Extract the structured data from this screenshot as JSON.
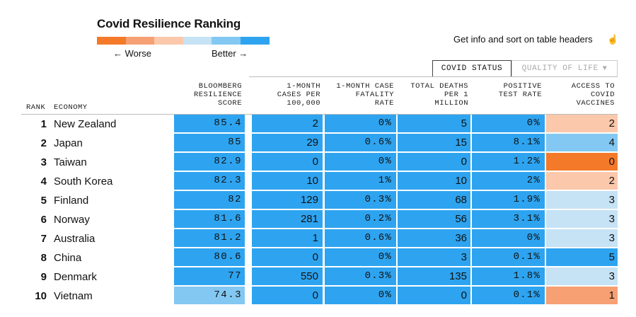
{
  "title": "Covid Resilience Ranking",
  "legend": {
    "worse": "← Worse",
    "better": "Better →",
    "colors": [
      "#f47a2a",
      "#f6a073",
      "#fbc8ab",
      "#c6e2f5",
      "#83c8f2",
      "#2ea4f0"
    ]
  },
  "info": "Get info and sort on table headers",
  "info_icon": "pointer-hand-icon",
  "tabs": {
    "covid": "COVID STATUS",
    "quality": "QUALITY OF LIFE"
  },
  "headers": {
    "rank": "RANK",
    "economy": "ECONOMY",
    "score": "BLOOMBERG\nRESILIENCE\nSCORE",
    "cases": "1-MONTH\nCASES PER\n100,000",
    "fatality": "1-MONTH CASE\nFATALITY\nRATE",
    "deaths": "TOTAL DEATHS\nPER 1\nMILLION",
    "positive": "POSITIVE\nTEST RATE",
    "vaccines": "ACCESS TO\nCOVID\nVACCINES"
  },
  "rows": [
    {
      "rank": "1",
      "economy": "New Zealand",
      "score": "85.4",
      "cases": "2",
      "fatality": "0%",
      "deaths": "5",
      "positive": "0%",
      "vaccines": "2"
    },
    {
      "rank": "2",
      "economy": "Japan",
      "score": "85",
      "cases": "29",
      "fatality": "0.6%",
      "deaths": "15",
      "positive": "8.1%",
      "vaccines": "4"
    },
    {
      "rank": "3",
      "economy": "Taiwan",
      "score": "82.9",
      "cases": "0",
      "fatality": "0%",
      "deaths": "0",
      "positive": "1.2%",
      "vaccines": "0"
    },
    {
      "rank": "4",
      "economy": "South Korea",
      "score": "82.3",
      "cases": "10",
      "fatality": "1%",
      "deaths": "10",
      "positive": "2%",
      "vaccines": "2"
    },
    {
      "rank": "5",
      "economy": "Finland",
      "score": "82",
      "cases": "129",
      "fatality": "0.3%",
      "deaths": "68",
      "positive": "1.9%",
      "vaccines": "3"
    },
    {
      "rank": "6",
      "economy": "Norway",
      "score": "81.6",
      "cases": "281",
      "fatality": "0.2%",
      "deaths": "56",
      "positive": "3.1%",
      "vaccines": "3"
    },
    {
      "rank": "7",
      "economy": "Australia",
      "score": "81.2",
      "cases": "1",
      "fatality": "0.6%",
      "deaths": "36",
      "positive": "0%",
      "vaccines": "3"
    },
    {
      "rank": "8",
      "economy": "China",
      "score": "80.6",
      "cases": "0",
      "fatality": "0%",
      "deaths": "3",
      "positive": "0.1%",
      "vaccines": "5"
    },
    {
      "rank": "9",
      "economy": "Denmark",
      "score": "77",
      "cases": "550",
      "fatality": "0.3%",
      "deaths": "135",
      "positive": "1.8%",
      "vaccines": "3"
    },
    {
      "rank": "10",
      "economy": "Vietnam",
      "score": "74.3",
      "cases": "0",
      "fatality": "0%",
      "deaths": "0",
      "positive": "0.1%",
      "vaccines": "1"
    }
  ],
  "cell_colors": [
    {
      "score": "#2ea4f0",
      "cases": "#2ea4f0",
      "fatality": "#2ea4f0",
      "deaths": "#2ea4f0",
      "positive": "#2ea4f0",
      "vaccines": "#fbc8ab"
    },
    {
      "score": "#2ea4f0",
      "cases": "#2ea4f0",
      "fatality": "#2ea4f0",
      "deaths": "#2ea4f0",
      "positive": "#2ea4f0",
      "vaccines": "#83c8f2"
    },
    {
      "score": "#2ea4f0",
      "cases": "#2ea4f0",
      "fatality": "#2ea4f0",
      "deaths": "#2ea4f0",
      "positive": "#2ea4f0",
      "vaccines": "#f47a2a"
    },
    {
      "score": "#2ea4f0",
      "cases": "#2ea4f0",
      "fatality": "#2ea4f0",
      "deaths": "#2ea4f0",
      "positive": "#2ea4f0",
      "vaccines": "#fbc8ab"
    },
    {
      "score": "#2ea4f0",
      "cases": "#2ea4f0",
      "fatality": "#2ea4f0",
      "deaths": "#2ea4f0",
      "positive": "#2ea4f0",
      "vaccines": "#c6e2f5"
    },
    {
      "score": "#2ea4f0",
      "cases": "#2ea4f0",
      "fatality": "#2ea4f0",
      "deaths": "#2ea4f0",
      "positive": "#2ea4f0",
      "vaccines": "#c6e2f5"
    },
    {
      "score": "#2ea4f0",
      "cases": "#2ea4f0",
      "fatality": "#2ea4f0",
      "deaths": "#2ea4f0",
      "positive": "#2ea4f0",
      "vaccines": "#c6e2f5"
    },
    {
      "score": "#2ea4f0",
      "cases": "#2ea4f0",
      "fatality": "#2ea4f0",
      "deaths": "#2ea4f0",
      "positive": "#2ea4f0",
      "vaccines": "#2ea4f0"
    },
    {
      "score": "#2ea4f0",
      "cases": "#2ea4f0",
      "fatality": "#2ea4f0",
      "deaths": "#2ea4f0",
      "positive": "#2ea4f0",
      "vaccines": "#c6e2f5"
    },
    {
      "score": "#83c8f2",
      "cases": "#2ea4f0",
      "fatality": "#2ea4f0",
      "deaths": "#2ea4f0",
      "positive": "#2ea4f0",
      "vaccines": "#f6a073"
    }
  ]
}
